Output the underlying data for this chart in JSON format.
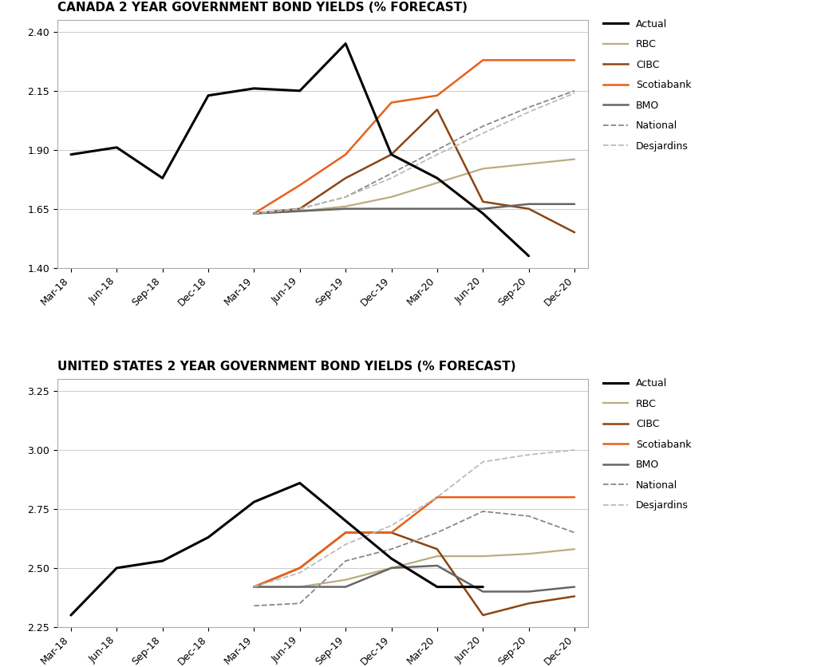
{
  "title1": "CANADA 2 YEAR GOVERNMENT BOND YIELDS (% FORECAST)",
  "title2": "UNITED STATES 2 YEAR GOVERNMENT BOND YIELDS (% FORECAST)",
  "x_labels": [
    "Mar-18",
    "Jun-18",
    "Sep-18",
    "Dec-18",
    "Mar-19",
    "Jun-19",
    "Sep-19",
    "Dec-19",
    "Mar-20",
    "Jun-20",
    "Sep-20",
    "Dec-20"
  ],
  "canada": {
    "actual": [
      1.88,
      1.91,
      1.78,
      2.13,
      2.16,
      2.15,
      2.35,
      1.88,
      1.78,
      1.63,
      1.45,
      null
    ],
    "rbc": [
      null,
      null,
      null,
      null,
      1.63,
      1.64,
      1.66,
      1.7,
      1.76,
      1.82,
      1.84,
      1.86
    ],
    "cibc": [
      null,
      null,
      null,
      null,
      1.63,
      1.65,
      1.78,
      1.88,
      2.07,
      1.68,
      1.65,
      1.55
    ],
    "scotiabank": [
      null,
      null,
      null,
      null,
      1.63,
      1.75,
      1.88,
      2.1,
      2.13,
      2.28,
      2.28,
      2.28
    ],
    "bmo": [
      null,
      null,
      null,
      null,
      1.63,
      1.64,
      1.65,
      1.65,
      1.65,
      1.65,
      1.67,
      1.67
    ],
    "national": [
      null,
      null,
      null,
      null,
      1.63,
      1.65,
      1.7,
      1.8,
      1.9,
      2.0,
      2.08,
      2.15
    ],
    "desjardins": [
      null,
      null,
      null,
      null,
      1.63,
      1.65,
      1.7,
      1.78,
      1.88,
      1.97,
      2.06,
      2.14
    ],
    "ylim": [
      1.4,
      2.45
    ],
    "yticks": [
      1.4,
      1.65,
      1.9,
      2.15,
      2.4
    ]
  },
  "us": {
    "actual": [
      2.3,
      2.5,
      2.53,
      2.63,
      2.78,
      2.86,
      2.7,
      2.54,
      2.42,
      2.42,
      null,
      null
    ],
    "rbc": [
      null,
      null,
      null,
      null,
      2.42,
      2.42,
      2.45,
      2.5,
      2.55,
      2.55,
      2.56,
      2.58
    ],
    "cibc": [
      null,
      null,
      null,
      null,
      2.42,
      2.5,
      2.65,
      2.65,
      2.58,
      2.3,
      2.35,
      2.38
    ],
    "scotiabank": [
      null,
      null,
      null,
      null,
      2.42,
      2.5,
      2.65,
      2.65,
      2.8,
      2.8,
      2.8,
      2.8
    ],
    "bmo": [
      null,
      null,
      null,
      null,
      2.42,
      2.42,
      2.42,
      2.5,
      2.51,
      2.4,
      2.4,
      2.42
    ],
    "national": [
      null,
      null,
      null,
      null,
      2.34,
      2.35,
      2.53,
      2.58,
      2.65,
      2.74,
      2.72,
      2.65
    ],
    "desjardins": [
      null,
      null,
      null,
      null,
      2.42,
      2.48,
      2.6,
      2.68,
      2.8,
      2.95,
      2.98,
      3.0
    ],
    "ylim": [
      2.25,
      3.3
    ],
    "yticks": [
      2.25,
      2.5,
      2.75,
      3.0,
      3.25
    ]
  },
  "colors": {
    "actual": "#000000",
    "rbc": "#b8ad82",
    "cibc": "#8B4513",
    "scotiabank": "#E8601C",
    "bmo": "#666666",
    "national": "#888888",
    "desjardins": "#bbbbbb"
  },
  "bg_color": "#ffffff",
  "plot_bg": "#ffffff",
  "grid_color": "#cccccc",
  "title_fontsize": 11,
  "tick_fontsize": 9,
  "legend_fontsize": 9
}
